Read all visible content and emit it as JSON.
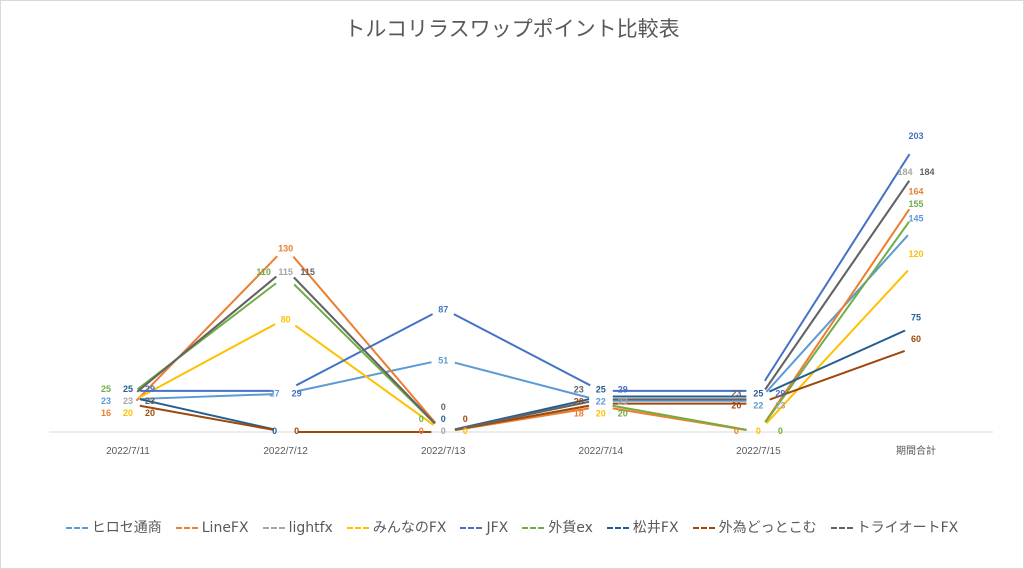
{
  "chart_data": {
    "type": "line",
    "title": "トルコリラスワップポイント比較表",
    "categories": [
      "2022/7/11",
      "2022/7/12",
      "2022/7/13",
      "2022/7/14",
      "2022/7/15",
      "期間合計"
    ],
    "ylim": [
      0,
      210
    ],
    "grid": false,
    "legend": "bottom",
    "series": [
      {
        "name": "ヒロセ通商",
        "color": "#5b9bd5",
        "values": [
          23,
          27,
          51,
          22,
          22,
          145
        ]
      },
      {
        "name": "LineFX",
        "color": "#ed7d31",
        "values": [
          16,
          130,
          0,
          18,
          0,
          164
        ]
      },
      {
        "name": "lightfx",
        "color": "#a5a5a5",
        "values": [
          23,
          115,
          0,
          23,
          23,
          184
        ]
      },
      {
        "name": "みんなのFX",
        "color": "#ffc000",
        "values": [
          20,
          80,
          0,
          20,
          0,
          120
        ]
      },
      {
        "name": "JFX",
        "color": "#4472c4",
        "values": [
          29,
          29,
          87,
          29,
          29,
          203
        ]
      },
      {
        "name": "外貨ex",
        "color": "#70ad47",
        "values": [
          25,
          110,
          0,
          20,
          0,
          155
        ]
      },
      {
        "name": "松井FX",
        "color": "#255e91",
        "values": [
          25,
          0,
          0,
          25,
          25,
          75
        ]
      },
      {
        "name": "外為どっとこむ",
        "color": "#9e480e",
        "values": [
          20,
          0,
          0,
          20,
          20,
          60
        ]
      },
      {
        "name": "トライオートFX",
        "color": "#636363",
        "values": [
          23,
          115,
          0,
          23,
          23,
          184
        ]
      }
    ]
  }
}
